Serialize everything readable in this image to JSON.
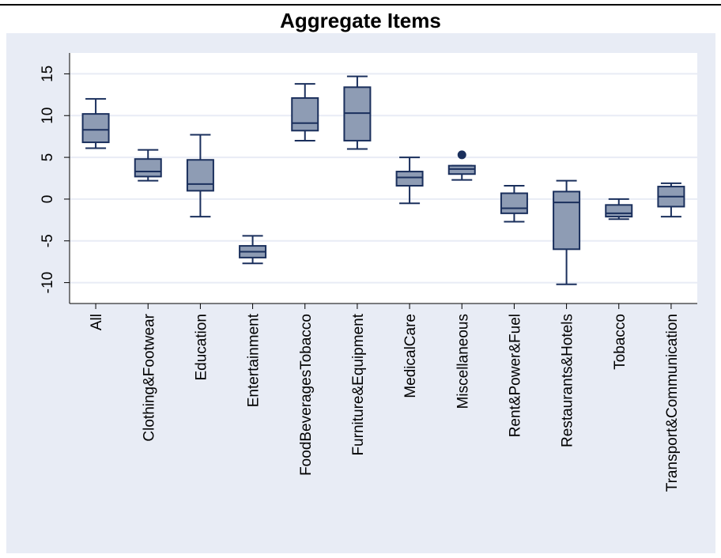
{
  "chart_data": {
    "type": "box",
    "title": "Aggregate Items",
    "xlabel": "",
    "ylabel": "",
    "ylim": [
      -12.5,
      17.5
    ],
    "yticks": [
      -10,
      -5,
      0,
      5,
      10,
      15
    ],
    "ytick_labels": [
      "-10",
      "-5",
      "0",
      "5",
      "10",
      "15"
    ],
    "grid": true,
    "legend": "none",
    "categories": [
      "All",
      "Clothing&Footwear",
      "Education",
      "Entertainment",
      "FoodBeveragesTobacco",
      "Furniture&Equipment",
      "MedicalCare",
      "Miscellaneous",
      "Rent&Power&Fuel",
      "Restaurants&Hotels",
      "Tobacco",
      "Transport&Communication"
    ],
    "boxes": [
      {
        "min": 6.1,
        "q1": 6.8,
        "median": 8.3,
        "q3": 10.2,
        "max": 12.0,
        "outliers": []
      },
      {
        "min": 2.2,
        "q1": 2.7,
        "median": 3.3,
        "q3": 4.8,
        "max": 5.9,
        "outliers": []
      },
      {
        "min": -2.1,
        "q1": 1.0,
        "median": 1.8,
        "q3": 4.7,
        "max": 7.7,
        "outliers": []
      },
      {
        "min": -7.7,
        "q1": -7.0,
        "median": -6.3,
        "q3": -5.6,
        "max": -4.4,
        "outliers": []
      },
      {
        "min": 7.0,
        "q1": 8.2,
        "median": 9.1,
        "q3": 12.1,
        "max": 13.8,
        "outliers": []
      },
      {
        "min": 6.0,
        "q1": 7.0,
        "median": 10.3,
        "q3": 13.4,
        "max": 14.7,
        "outliers": []
      },
      {
        "min": -0.5,
        "q1": 1.6,
        "median": 2.6,
        "q3": 3.3,
        "max": 5.0,
        "outliers": []
      },
      {
        "min": 2.3,
        "q1": 3.0,
        "median": 3.6,
        "q3": 4.0,
        "max": 4.0,
        "outliers": [
          5.3
        ]
      },
      {
        "min": -2.7,
        "q1": -1.7,
        "median": -1.1,
        "q3": 0.7,
        "max": 1.6,
        "outliers": []
      },
      {
        "min": -10.2,
        "q1": -6.0,
        "median": -0.4,
        "q3": 0.9,
        "max": 2.2,
        "outliers": []
      },
      {
        "min": -2.4,
        "q1": -2.1,
        "median": -1.7,
        "q3": -0.7,
        "max": 0.0,
        "outliers": []
      },
      {
        "min": -2.1,
        "q1": -0.9,
        "median": 0.3,
        "q3": 1.5,
        "max": 1.9,
        "outliers": []
      }
    ],
    "colors": {
      "box_fill": "#8e9cb4",
      "line": "#1a2f5c",
      "outer_background": "#e8ecf5",
      "plot_background": "#ffffff",
      "grid": "#e8ecf5"
    }
  }
}
